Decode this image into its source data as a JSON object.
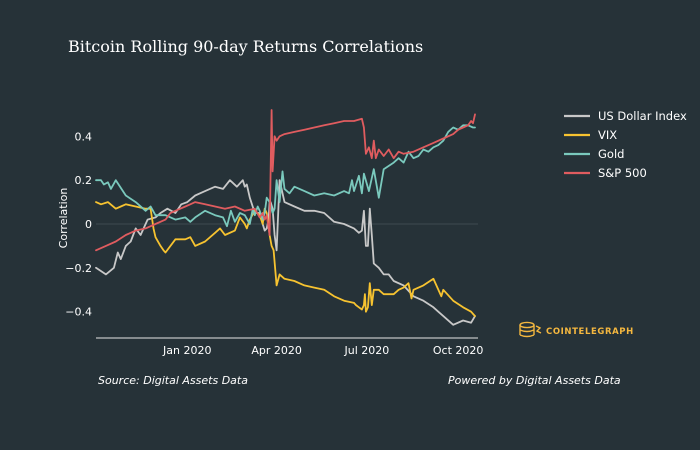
{
  "source_note": "Source: Digital Assets Data",
  "powered_note": "Powered by Digital Assets Data",
  "brand": "COINTELEGRAPH",
  "colors": {
    "background": "#263238",
    "US Dollar Index": "#c8c8c8",
    "VIX": "#f7c330",
    "Gold": "#7ac9bd",
    "S&P 500": "#e05c5f",
    "brand": "#f4b73f"
  },
  "chart_data": {
    "type": "line",
    "title": "Bitcoin Rolling 90-day Returns Correlations",
    "xlabel": "",
    "ylabel": "Correlation",
    "x_unit": "days since 2019-10-01",
    "xlim": [
      0,
      385
    ],
    "ylim": [
      -0.52,
      0.52
    ],
    "x_ticks": [
      {
        "label": "Jan 2020",
        "x": 92
      },
      {
        "label": "Apr 2020",
        "x": 182
      },
      {
        "label": "Jul 2020",
        "x": 273
      },
      {
        "label": "Oct 2020",
        "x": 365
      }
    ],
    "y_ticks": [
      {
        "label": "0.4",
        "y": 0.4
      },
      {
        "label": "0.2",
        "y": 0.2
      },
      {
        "label": "0",
        "y": 0
      },
      {
        "label": "−0.2",
        "y": -0.2
      },
      {
        "label": "−0.4",
        "y": -0.4
      }
    ],
    "legend_position": "right",
    "series": [
      {
        "name": "US Dollar Index",
        "x": [
          0,
          10,
          18,
          22,
          25,
          30,
          35,
          40,
          45,
          52,
          60,
          65,
          72,
          80,
          86,
          92,
          100,
          110,
          120,
          128,
          135,
          142,
          148,
          150,
          152,
          155,
          160,
          165,
          168,
          170,
          172,
          174,
          175,
          176,
          178,
          180,
          182,
          185,
          190,
          200,
          210,
          220,
          230,
          240,
          250,
          260,
          265,
          268,
          270,
          272,
          274,
          276,
          278,
          280,
          285,
          290,
          295,
          300,
          310,
          320,
          330,
          340,
          345,
          350,
          360,
          370,
          378,
          382
        ],
        "y": [
          -0.2,
          -0.23,
          -0.2,
          -0.13,
          -0.16,
          -0.1,
          -0.08,
          -0.02,
          -0.05,
          0.02,
          0.03,
          0.05,
          0.07,
          0.05,
          0.09,
          0.1,
          0.13,
          0.15,
          0.17,
          0.16,
          0.2,
          0.17,
          0.2,
          0.17,
          0.18,
          0.12,
          0.05,
          0.05,
          0.0,
          -0.03,
          -0.02,
          0.02,
          0.1,
          0.1,
          0.07,
          -0.05,
          -0.12,
          0.2,
          0.1,
          0.08,
          0.06,
          0.06,
          0.05,
          0.01,
          0.0,
          -0.02,
          -0.04,
          -0.03,
          0.06,
          -0.1,
          -0.1,
          0.07,
          -0.05,
          -0.18,
          -0.2,
          -0.23,
          -0.23,
          -0.26,
          -0.28,
          -0.33,
          -0.35,
          -0.38,
          -0.4,
          -0.42,
          -0.46,
          -0.44,
          -0.45,
          -0.42
        ]
      },
      {
        "name": "VIX",
        "x": [
          0,
          5,
          12,
          20,
          25,
          30,
          40,
          50,
          55,
          58,
          60,
          65,
          68,
          70,
          80,
          90,
          95,
          100,
          110,
          120,
          125,
          130,
          140,
          145,
          150,
          152,
          155,
          160,
          165,
          168,
          170,
          172,
          174,
          175,
          177,
          179,
          182,
          185,
          190,
          200,
          210,
          220,
          230,
          240,
          250,
          260,
          262,
          265,
          268,
          270,
          271,
          272,
          274,
          276,
          278,
          280,
          285,
          290,
          300,
          305,
          310,
          315,
          318,
          320,
          330,
          340,
          348,
          350,
          360,
          370,
          378,
          382
        ],
        "y": [
          0.1,
          0.09,
          0.1,
          0.07,
          0.08,
          0.09,
          0.08,
          0.07,
          0.07,
          -0.02,
          -0.06,
          -0.1,
          -0.12,
          -0.13,
          -0.07,
          -0.07,
          -0.06,
          -0.1,
          -0.08,
          -0.04,
          -0.02,
          -0.05,
          -0.03,
          0.03,
          0.0,
          -0.02,
          0.02,
          0.06,
          0.04,
          0.0,
          0.07,
          0.05,
          0.0,
          -0.05,
          -0.1,
          -0.12,
          -0.28,
          -0.23,
          -0.25,
          -0.26,
          -0.28,
          -0.29,
          -0.3,
          -0.33,
          -0.35,
          -0.36,
          -0.37,
          -0.38,
          -0.39,
          -0.37,
          -0.32,
          -0.4,
          -0.38,
          -0.27,
          -0.37,
          -0.3,
          -0.3,
          -0.32,
          -0.32,
          -0.3,
          -0.29,
          -0.27,
          -0.34,
          -0.3,
          -0.28,
          -0.25,
          -0.33,
          -0.3,
          -0.35,
          -0.38,
          -0.4,
          -0.42
        ]
      },
      {
        "name": "Gold",
        "x": [
          0,
          5,
          8,
          12,
          15,
          20,
          30,
          40,
          50,
          55,
          60,
          70,
          80,
          90,
          95,
          100,
          110,
          120,
          128,
          132,
          136,
          140,
          145,
          150,
          155,
          158,
          160,
          163,
          165,
          168,
          170,
          172,
          175,
          178,
          180,
          182,
          185,
          188,
          190,
          195,
          200,
          210,
          220,
          230,
          240,
          250,
          255,
          258,
          260,
          265,
          268,
          270,
          275,
          280,
          285,
          290,
          300,
          305,
          310,
          315,
          320,
          325,
          330,
          335,
          340,
          345,
          350,
          355,
          360,
          365,
          370,
          375,
          380,
          382
        ],
        "y": [
          0.2,
          0.2,
          0.18,
          0.19,
          0.16,
          0.2,
          0.13,
          0.1,
          0.06,
          0.08,
          0.04,
          0.04,
          0.02,
          0.03,
          0.01,
          0.03,
          0.06,
          0.04,
          0.03,
          -0.01,
          0.06,
          0.01,
          0.05,
          0.04,
          0.0,
          0.07,
          0.04,
          0.08,
          0.06,
          0.02,
          0.05,
          0.12,
          0.1,
          0.05,
          0.07,
          0.2,
          0.1,
          0.24,
          0.16,
          0.14,
          0.17,
          0.15,
          0.13,
          0.14,
          0.13,
          0.15,
          0.14,
          0.2,
          0.15,
          0.22,
          0.14,
          0.23,
          0.15,
          0.25,
          0.12,
          0.25,
          0.28,
          0.3,
          0.28,
          0.33,
          0.3,
          0.31,
          0.34,
          0.33,
          0.35,
          0.36,
          0.38,
          0.42,
          0.44,
          0.43,
          0.45,
          0.45,
          0.44,
          0.44
        ]
      },
      {
        "name": "S&P 500",
        "x": [
          0,
          10,
          20,
          30,
          40,
          50,
          60,
          70,
          75,
          80,
          85,
          90,
          95,
          100,
          110,
          120,
          130,
          140,
          150,
          160,
          165,
          168,
          170,
          172,
          175,
          177,
          178,
          180,
          182,
          185,
          190,
          200,
          210,
          220,
          230,
          240,
          250,
          260,
          268,
          270,
          272,
          275,
          278,
          280,
          282,
          285,
          290,
          295,
          300,
          305,
          310,
          320,
          330,
          340,
          350,
          360,
          365,
          370,
          375,
          378,
          380,
          382
        ],
        "y": [
          -0.12,
          -0.1,
          -0.08,
          -0.05,
          -0.03,
          -0.02,
          0.0,
          0.02,
          0.05,
          0.06,
          0.07,
          0.08,
          0.09,
          0.1,
          0.09,
          0.08,
          0.07,
          0.08,
          0.06,
          0.07,
          0.03,
          0.05,
          0.02,
          0.04,
          -0.05,
          0.52,
          0.24,
          0.4,
          0.38,
          0.4,
          0.41,
          0.42,
          0.43,
          0.44,
          0.45,
          0.46,
          0.47,
          0.47,
          0.48,
          0.44,
          0.32,
          0.35,
          0.3,
          0.38,
          0.3,
          0.34,
          0.31,
          0.34,
          0.3,
          0.33,
          0.32,
          0.33,
          0.35,
          0.37,
          0.39,
          0.41,
          0.43,
          0.44,
          0.45,
          0.47,
          0.46,
          0.5
        ]
      }
    ]
  }
}
